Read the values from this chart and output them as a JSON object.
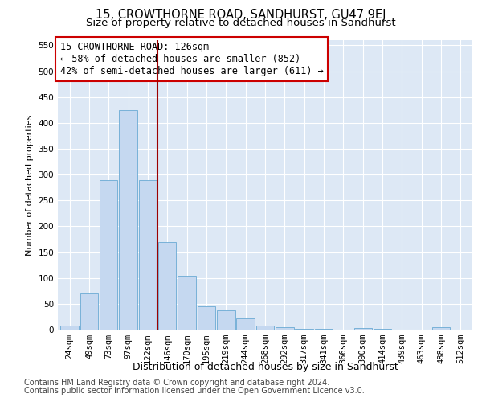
{
  "title": "15, CROWTHORNE ROAD, SANDHURST, GU47 9EJ",
  "subtitle": "Size of property relative to detached houses in Sandhurst",
  "xlabel": "Distribution of detached houses by size in Sandhurst",
  "ylabel": "Number of detached properties",
  "categories": [
    "24sqm",
    "49sqm",
    "73sqm",
    "97sqm",
    "122sqm",
    "146sqm",
    "170sqm",
    "195sqm",
    "219sqm",
    "244sqm",
    "268sqm",
    "292sqm",
    "317sqm",
    "341sqm",
    "366sqm",
    "390sqm",
    "414sqm",
    "439sqm",
    "463sqm",
    "488sqm",
    "512sqm"
  ],
  "values": [
    8,
    70,
    290,
    425,
    290,
    170,
    105,
    45,
    38,
    22,
    8,
    4,
    2,
    2,
    0,
    3,
    2,
    0,
    0,
    5,
    0
  ],
  "bar_color": "#c5d8f0",
  "bar_edge_color": "#6aaad4",
  "property_line_x": 4.5,
  "annotation_text": "15 CROWTHORNE ROAD: 126sqm\n← 58% of detached houses are smaller (852)\n42% of semi-detached houses are larger (611) →",
  "annotation_box_color": "#ffffff",
  "annotation_box_edge_color": "#cc0000",
  "vline_color": "#9b0000",
  "ylim": [
    0,
    560
  ],
  "yticks": [
    0,
    50,
    100,
    150,
    200,
    250,
    300,
    350,
    400,
    450,
    500,
    550
  ],
  "plot_background": "#dde8f5",
  "footer1": "Contains HM Land Registry data © Crown copyright and database right 2024.",
  "footer2": "Contains public sector information licensed under the Open Government Licence v3.0.",
  "title_fontsize": 10.5,
  "subtitle_fontsize": 9.5,
  "ylabel_fontsize": 8,
  "xlabel_fontsize": 9,
  "tick_fontsize": 7.5,
  "footer_fontsize": 7,
  "annot_fontsize": 8.5
}
